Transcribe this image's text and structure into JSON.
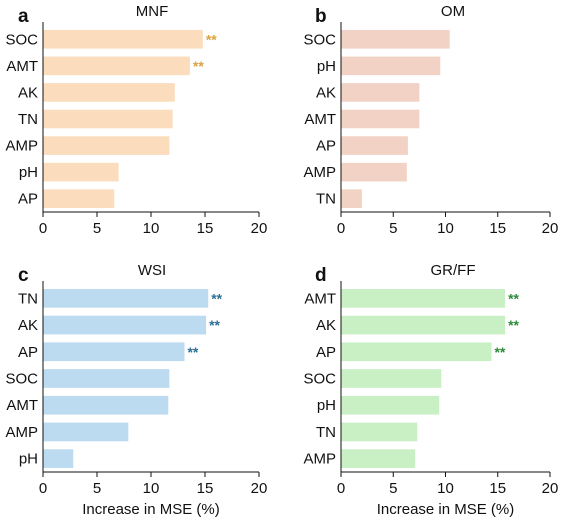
{
  "chart_data": [
    {
      "type": "bar",
      "orientation": "horizontal",
      "panel": "a",
      "title": "MNF",
      "categories": [
        "SOC",
        "AMT",
        "AK",
        "TN",
        "AMP",
        "pH",
        "AP"
      ],
      "values": [
        14.8,
        13.6,
        12.2,
        12.0,
        11.7,
        7.0,
        6.6
      ],
      "significance": [
        "**",
        "**",
        "",
        "",
        "",
        "",
        ""
      ],
      "bar_color": "#fbdcbc",
      "sig_color": "#d9a441",
      "xlim": [
        0,
        20
      ],
      "xticks": [
        0,
        5,
        10,
        15,
        20
      ],
      "xlabel": ""
    },
    {
      "type": "bar",
      "orientation": "horizontal",
      "panel": "b",
      "title": "OM",
      "categories": [
        "SOC",
        "pH",
        "AK",
        "AMT",
        "AP",
        "AMP",
        "TN"
      ],
      "values": [
        10.4,
        9.5,
        7.5,
        7.5,
        6.4,
        6.3,
        2.0
      ],
      "significance": [
        "",
        "",
        "",
        "",
        "",
        "",
        ""
      ],
      "bar_color": "#f2d2c4",
      "sig_color": "#c0826b",
      "xlim": [
        0,
        20
      ],
      "xticks": [
        0,
        5,
        10,
        15,
        20
      ],
      "xlabel": ""
    },
    {
      "type": "bar",
      "orientation": "horizontal",
      "panel": "c",
      "title": "WSI",
      "categories": [
        "TN",
        "AK",
        "AP",
        "SOC",
        "AMT",
        "AMP",
        "pH"
      ],
      "values": [
        15.3,
        15.1,
        13.1,
        11.7,
        11.6,
        7.9,
        2.8
      ],
      "significance": [
        "**",
        "**",
        "**",
        "",
        "",
        "",
        ""
      ],
      "bar_color": "#bcdaf0",
      "sig_color": "#2f6e96",
      "xlim": [
        0,
        20
      ],
      "xticks": [
        0,
        5,
        10,
        15,
        20
      ],
      "xlabel": "Increase in MSE (%)"
    },
    {
      "type": "bar",
      "orientation": "horizontal",
      "panel": "d",
      "title": "GR/FF",
      "categories": [
        "AMT",
        "AK",
        "AP",
        "SOC",
        "pH",
        "TN",
        "AMP"
      ],
      "values": [
        15.7,
        15.7,
        14.4,
        9.6,
        9.4,
        7.3,
        7.1
      ],
      "significance": [
        "**",
        "**",
        "**",
        "",
        "",
        "",
        ""
      ],
      "bar_color": "#c9efc4",
      "sig_color": "#2f8a3b",
      "xlim": [
        0,
        20
      ],
      "xticks": [
        0,
        5,
        10,
        15,
        20
      ],
      "xlabel": "Increase in MSE (%)"
    }
  ]
}
